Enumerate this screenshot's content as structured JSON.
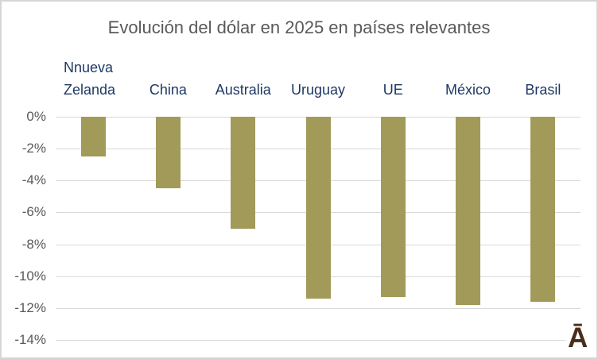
{
  "title": "Evolución del dólar en 2025 en países relevantes",
  "logo": {
    "glyph": "Ā",
    "color": "#4a2d1a"
  },
  "chart_data": {
    "type": "bar",
    "title": "Evolución del dólar en 2025 en países relevantes",
    "categories": [
      "Nnueva Zelanda",
      "China",
      "Australia",
      "Uruguay",
      "UE",
      "México",
      "Brasil"
    ],
    "category_lines": [
      [
        "Nnueva",
        "Zelanda"
      ],
      [
        "China"
      ],
      [
        "Australia"
      ],
      [
        "Uruguay"
      ],
      [
        "UE"
      ],
      [
        "México"
      ],
      [
        "Brasil"
      ]
    ],
    "values": [
      -2.5,
      -4.5,
      -7.0,
      -11.4,
      -11.3,
      -11.8,
      -11.6
    ],
    "unit": "%",
    "xlabel": "",
    "ylabel": "",
    "ylim": [
      -14,
      0
    ],
    "yticks": [
      "0%",
      "-2%",
      "-4%",
      "-6%",
      "-8%",
      "-10%",
      "-12%",
      "-14%"
    ],
    "ytick_values": [
      0,
      -2,
      -4,
      -6,
      -8,
      -10,
      -12,
      -14
    ],
    "grid": true,
    "legend": false,
    "bar_color": "#a29a59",
    "gridline_color": "#d9d9d9",
    "category_label_color": "#1f3864",
    "axis_label_color": "#595959",
    "title_color": "#595959"
  }
}
